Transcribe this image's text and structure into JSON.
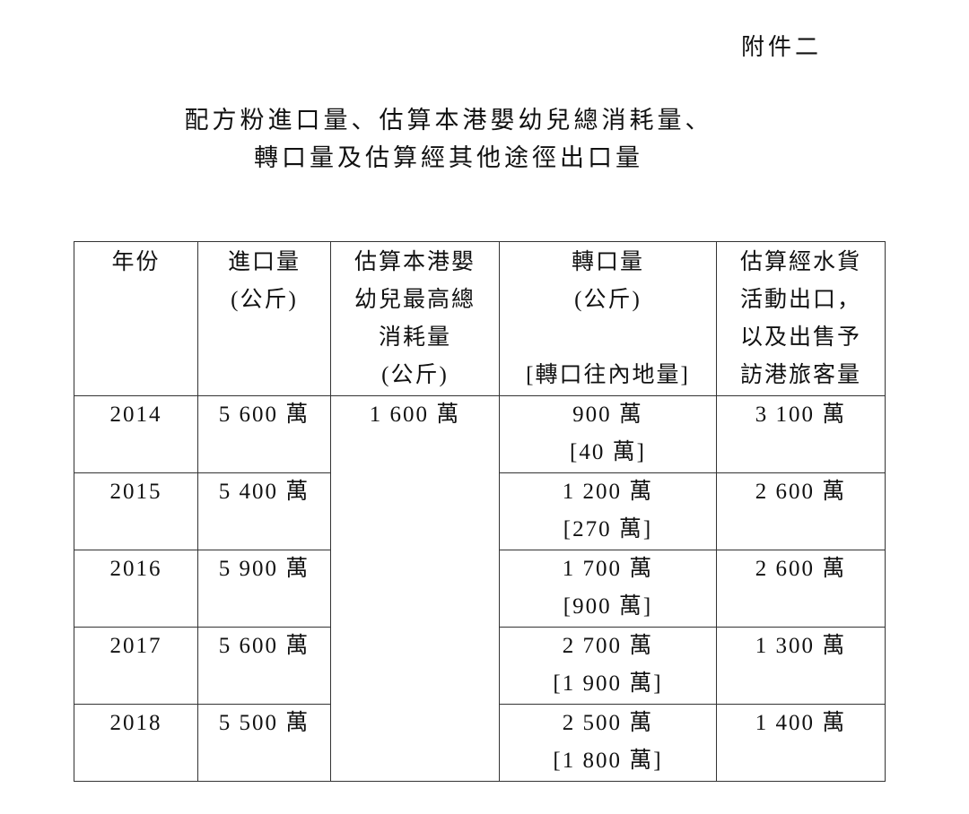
{
  "annex_label": "附件二",
  "title": {
    "line1": "配方粉進口量、估算本港嬰幼兒總消耗量、",
    "line2": "轉口量及估算經其他途徑出口量"
  },
  "table": {
    "headers": [
      {
        "lines": [
          "年份"
        ]
      },
      {
        "lines": [
          "進口量",
          "(公斤)"
        ]
      },
      {
        "lines": [
          "估算本港嬰",
          "幼兒最高總",
          "消耗量",
          "(公斤)"
        ]
      },
      {
        "lines": [
          "轉口量",
          "(公斤)",
          "",
          "[轉口往內地量]"
        ]
      },
      {
        "lines": [
          "估算經水貨",
          "活動出口，",
          "以及出售予",
          "訪港旅客量"
        ]
      }
    ],
    "consumption_all_years": "1 600 萬",
    "rows": [
      {
        "year": "2014",
        "import": "5 600 萬",
        "reexport": "900 萬",
        "reexport_mainland": "[40 萬]",
        "parallel": "3 100 萬"
      },
      {
        "year": "2015",
        "import": "5 400 萬",
        "reexport": "1 200 萬",
        "reexport_mainland": "[270 萬]",
        "parallel": "2 600 萬"
      },
      {
        "year": "2016",
        "import": "5 900 萬",
        "reexport": "1 700 萬",
        "reexport_mainland": "[900 萬]",
        "parallel": "2 600 萬"
      },
      {
        "year": "2017",
        "import": "5 600 萬",
        "reexport": "2 700 萬",
        "reexport_mainland": "[1 900 萬]",
        "parallel": "1 300 萬"
      },
      {
        "year": "2018",
        "import": "5 500 萬",
        "reexport": "2 500 萬",
        "reexport_mainland": "[1 800 萬]",
        "parallel": "1 400 萬"
      }
    ]
  }
}
